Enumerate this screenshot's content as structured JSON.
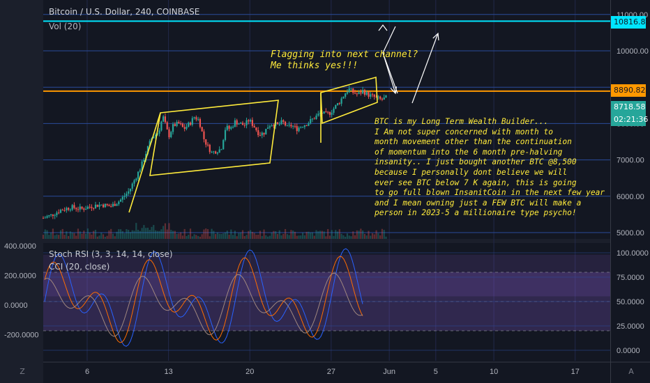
{
  "header": {
    "title": "Bitcoin / U.S. Dollar, 240, COINBASE",
    "volume_label": "Vol (20)"
  },
  "indicators": {
    "stoch": "Stoch RSI (3, 3, 14, 14, close)",
    "cci": "CCI (20, close)"
  },
  "annotations": {
    "flag_lines": [
      "Flagging into next channel?",
      "Me thinks yes!!!"
    ],
    "note_lines": [
      "BTC is my Long Term Wealth Builder...",
      "I Am not super concerned with month to",
      "month movement other than the continuation",
      "of momentum into the 6 month pre-halving",
      "insanity.. I just bought another BTC @8,500",
      "because I personally dont believe we will",
      "ever see BTC below 7 K again, this is going",
      "to go full blown InsanitCoin in the next few year",
      "and I mean owning just a FEW BTC will make a",
      "person in 2023-5 a millionaire type psycho!"
    ]
  },
  "price_tags": {
    "cyan": "10816.86",
    "orange": "8890.82",
    "last_price": "8718.58",
    "countdown": "02:21:36"
  },
  "controls": {
    "left": "Z",
    "right": "A"
  },
  "colors": {
    "background": "#131722",
    "grid": "#2a4b9b",
    "up": "#26a69a",
    "down": "#ef5350",
    "annotation": "#ffeb3b",
    "resistance_cyan": "#00e5ff",
    "resistance_orange": "#ff9800",
    "band": "#7e57c2"
  },
  "chart_data": [
    {
      "type": "candlestick",
      "title": "Bitcoin / U.S. Dollar, 240, COINBASE",
      "x_ticks": [
        "6",
        "13",
        "20",
        "27",
        "Jun",
        "5",
        "10",
        "17"
      ],
      "y_ticks": [
        "5000.00",
        "6000.00",
        "7000.00",
        "8000.00",
        "9000.00",
        "10000.00",
        "11000.00"
      ],
      "ylim": [
        4850,
        11250
      ],
      "resistance_levels": [
        10816.86,
        8890.82
      ],
      "last_price": 8718.58,
      "close_path": [
        {
          "x": 0,
          "y": 5400
        },
        {
          "x": 0.7,
          "y": 5480
        },
        {
          "x": 1.5,
          "y": 5620
        },
        {
          "x": 2.4,
          "y": 5700
        },
        {
          "x": 3.3,
          "y": 5650
        },
        {
          "x": 4.2,
          "y": 5730
        },
        {
          "x": 5.0,
          "y": 5770
        },
        {
          "x": 5.8,
          "y": 5720
        },
        {
          "x": 6.6,
          "y": 5880
        },
        {
          "x": 7.4,
          "y": 6150
        },
        {
          "x": 7.9,
          "y": 6480
        },
        {
          "x": 8.4,
          "y": 6800
        },
        {
          "x": 8.9,
          "y": 7250
        },
        {
          "x": 9.4,
          "y": 7650
        },
        {
          "x": 9.9,
          "y": 7750
        },
        {
          "x": 10.3,
          "y": 8200
        },
        {
          "x": 10.8,
          "y": 7650
        },
        {
          "x": 11.2,
          "y": 7950
        },
        {
          "x": 11.7,
          "y": 8000
        },
        {
          "x": 12.1,
          "y": 7850
        },
        {
          "x": 12.6,
          "y": 8000
        },
        {
          "x": 13.0,
          "y": 8180
        },
        {
          "x": 13.4,
          "y": 8100
        },
        {
          "x": 13.8,
          "y": 7600
        },
        {
          "x": 14.1,
          "y": 7400
        },
        {
          "x": 14.5,
          "y": 7200
        },
        {
          "x": 14.9,
          "y": 7250
        },
        {
          "x": 15.3,
          "y": 7300
        },
        {
          "x": 15.7,
          "y": 7900
        },
        {
          "x": 16.1,
          "y": 7850
        },
        {
          "x": 16.5,
          "y": 8050
        },
        {
          "x": 16.9,
          "y": 8000
        },
        {
          "x": 17.3,
          "y": 7950
        },
        {
          "x": 17.7,
          "y": 8100
        },
        {
          "x": 18.2,
          "y": 7900
        },
        {
          "x": 18.6,
          "y": 7700
        },
        {
          "x": 19.0,
          "y": 7750
        },
        {
          "x": 19.4,
          "y": 7950
        },
        {
          "x": 19.8,
          "y": 8000
        },
        {
          "x": 20.2,
          "y": 7950
        },
        {
          "x": 20.6,
          "y": 8050
        },
        {
          "x": 21.0,
          "y": 7900
        },
        {
          "x": 21.4,
          "y": 7950
        },
        {
          "x": 21.8,
          "y": 7850
        },
        {
          "x": 22.3,
          "y": 7950
        },
        {
          "x": 22.7,
          "y": 8000
        },
        {
          "x": 23.1,
          "y": 8100
        },
        {
          "x": 23.5,
          "y": 8200
        },
        {
          "x": 23.9,
          "y": 8300
        },
        {
          "x": 24.3,
          "y": 8250
        },
        {
          "x": 24.7,
          "y": 8300
        },
        {
          "x": 25.1,
          "y": 8450
        },
        {
          "x": 25.5,
          "y": 8600
        },
        {
          "x": 25.9,
          "y": 8800
        },
        {
          "x": 26.3,
          "y": 8950
        },
        {
          "x": 26.7,
          "y": 8850
        },
        {
          "x": 27.1,
          "y": 8800
        },
        {
          "x": 27.5,
          "y": 8900
        },
        {
          "x": 27.9,
          "y": 8800
        },
        {
          "x": 28.3,
          "y": 8750
        },
        {
          "x": 28.7,
          "y": 8700
        },
        {
          "x": 29.1,
          "y": 8650
        },
        {
          "x": 29.6,
          "y": 8720
        }
      ]
    },
    {
      "type": "line",
      "title": "Stoch RSI (3, 3, 14, 14, close)",
      "y_ticks": [
        "0.0000",
        "25.0000",
        "50.0000",
        "75.0000",
        "100.0000"
      ],
      "ylim": [
        -5,
        105
      ],
      "band_levels": [
        20,
        80
      ]
    },
    {
      "type": "line",
      "title": "CCI (20, close)",
      "y_ticks": [
        "-200.0000",
        "0.0000",
        "200.0000",
        "400.0000"
      ],
      "ylim": [
        -300,
        450
      ]
    }
  ]
}
